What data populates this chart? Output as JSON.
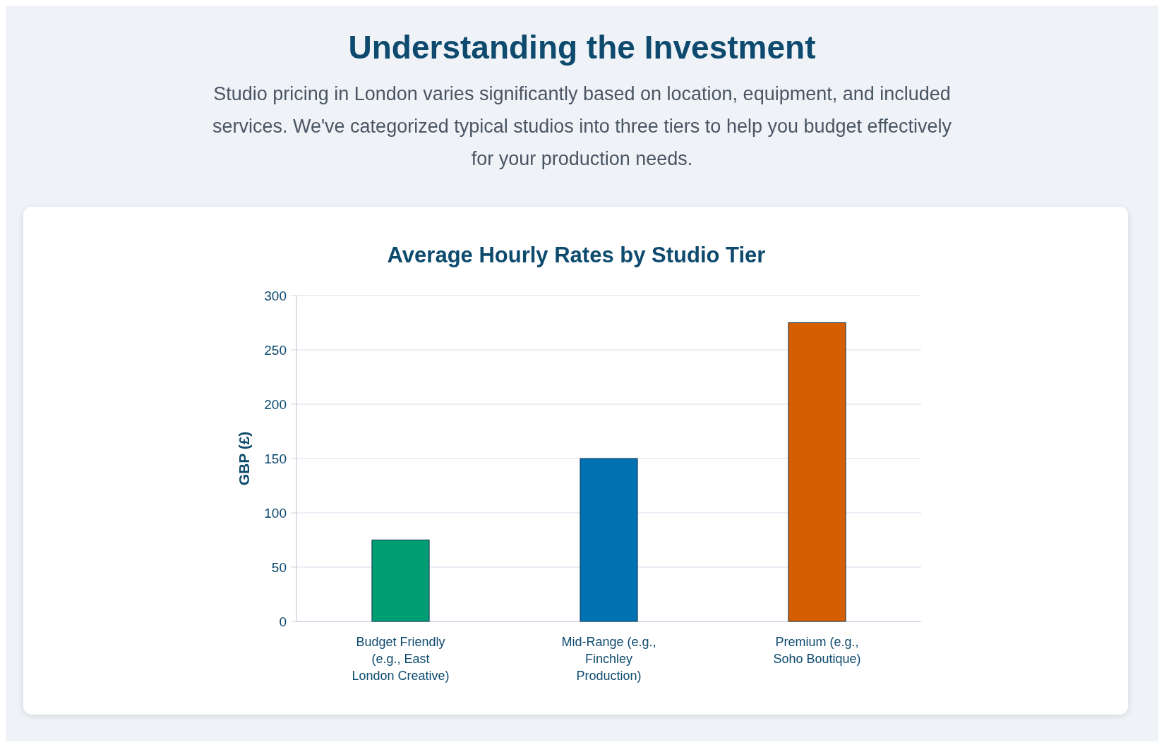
{
  "chart_data": {
    "type": "bar",
    "title": "Average Hourly Rates by Studio Tier",
    "annotations": [
      "Understanding the Investment",
      "Studio pricing in London varies significantly based on location, equipment, and included services. We've categorized typical studios into three tiers to help you budget effectively for your production needs."
    ],
    "ylabel": "GBP (£)",
    "categories": [
      "Budget Friendly (e.g., East London Creative)",
      "Mid-Range (e.g., Finchley Production)",
      "Premium (e.g., Soho Boutique)"
    ],
    "values": [
      75,
      150,
      275
    ],
    "colors": [
      "#009e73",
      "#0072b2",
      "#d55e00"
    ],
    "ylim": [
      0,
      300
    ],
    "yticks": [
      0,
      50,
      100,
      150,
      200,
      250,
      300
    ],
    "grid": "y"
  }
}
